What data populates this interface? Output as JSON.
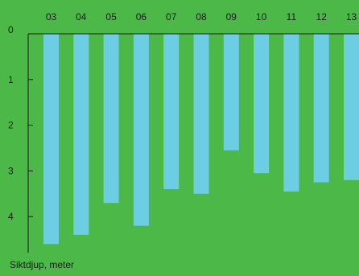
{
  "chart_data": {
    "type": "bar",
    "orientation": "vertical-hanging",
    "categories": [
      "03",
      "04",
      "05",
      "06",
      "07",
      "08",
      "09",
      "10",
      "11",
      "12",
      "13"
    ],
    "values": [
      4.6,
      4.4,
      3.7,
      4.2,
      3.4,
      3.5,
      2.55,
      3.05,
      3.45,
      3.25,
      3.2
    ],
    "ylabel": "Siktdjup, meter",
    "yticks": [
      0,
      1,
      2,
      3,
      4
    ],
    "ylim": [
      0,
      4.8
    ],
    "y_inverted": true,
    "x_tick_position": "top",
    "grid": false,
    "colors": {
      "background": "#4cb848",
      "bar": "#6dcde3",
      "axis": "#1a1a1a",
      "text": "#1a1a1a"
    }
  }
}
